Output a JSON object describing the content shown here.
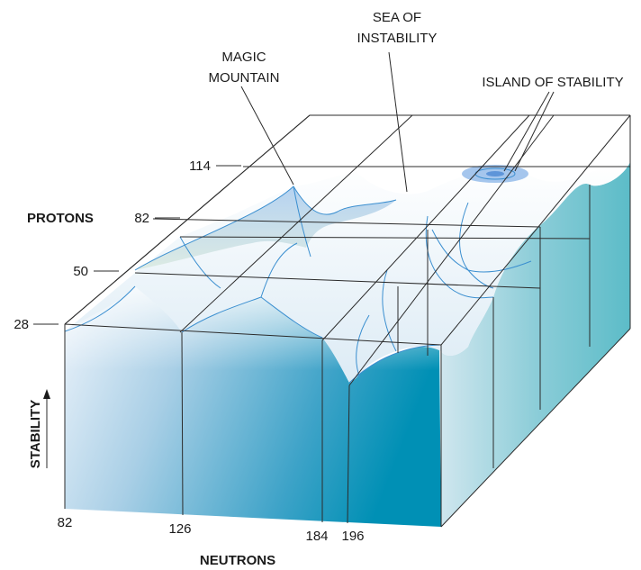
{
  "labels": {
    "sea_line1": "SEA OF",
    "sea_line2": "INSTABILITY",
    "magic_line1": "MAGIC",
    "magic_line2": "MOUNTAIN",
    "island": "ISLAND OF STABILITY",
    "protons_axis": "PROTONS",
    "neutrons_axis": "NEUTRONS",
    "stability_axis": "STABILITY"
  },
  "proton_ticks": [
    "114",
    "82",
    "50",
    "28"
  ],
  "neutron_ticks": [
    "82",
    "126",
    "184",
    "196"
  ],
  "colors": {
    "edge": "#2b2b2b",
    "contour": "#3b8fd0",
    "front_face_light": "#e8f1fa",
    "front_face_dark": "#0093b8",
    "right_face": "#6fc3cf",
    "island_fill": "#8fb8e8",
    "mountain_fill": "#b7d2f0"
  }
}
